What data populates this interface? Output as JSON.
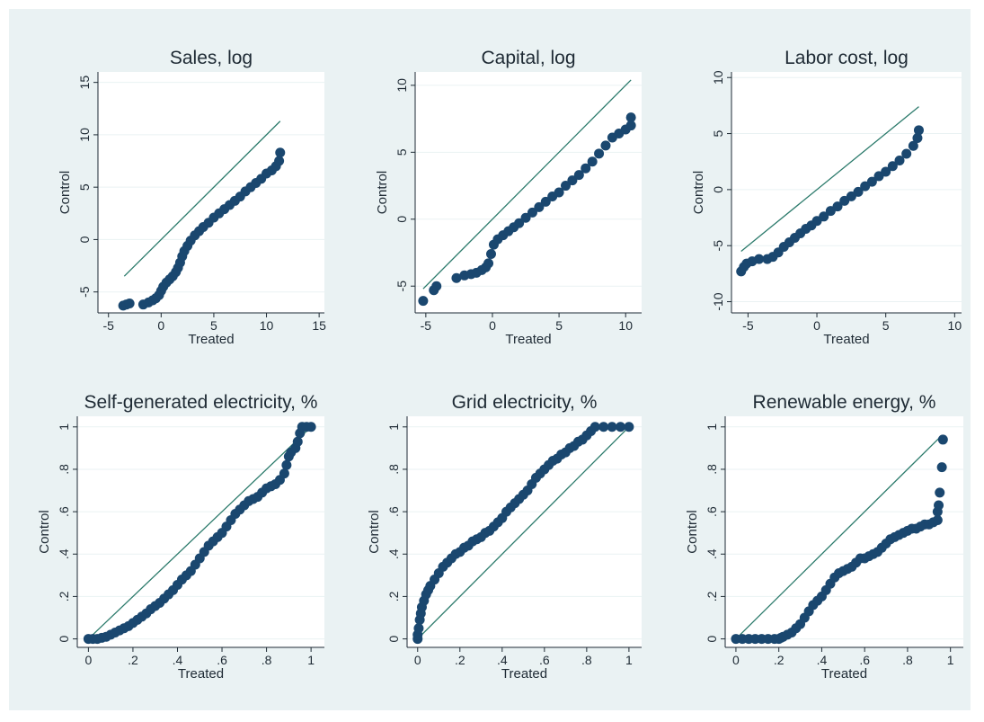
{
  "chart_data": [
    {
      "type": "scatter",
      "title": "Sales, log",
      "xlabel": "Treated",
      "ylabel": "Control",
      "xlim": [
        -6,
        15.5
      ],
      "ylim": [
        -7,
        16
      ],
      "xticks": [
        -5,
        0,
        5,
        10,
        15
      ],
      "xtick_labels": [
        "-5",
        "0",
        "5",
        "10",
        "15"
      ],
      "yticks": [
        -5,
        0,
        5,
        10,
        15
      ],
      "ytick_labels": [
        "-5",
        "0",
        "5",
        "10",
        "15"
      ],
      "grid": true,
      "reference_line": [
        [
          -3.5,
          -3.5
        ],
        [
          11.3,
          11.3
        ]
      ],
      "points": [
        [
          -3.6,
          -6.3
        ],
        [
          -3.3,
          -6.2
        ],
        [
          -3.0,
          -6.1
        ],
        [
          -1.7,
          -6.2
        ],
        [
          -1.2,
          -6.0
        ],
        [
          -0.8,
          -5.8
        ],
        [
          -0.5,
          -5.6
        ],
        [
          -0.2,
          -5.3
        ],
        [
          0.0,
          -4.9
        ],
        [
          0.2,
          -4.5
        ],
        [
          0.5,
          -4.1
        ],
        [
          0.8,
          -3.8
        ],
        [
          1.1,
          -3.5
        ],
        [
          1.4,
          -3.1
        ],
        [
          1.6,
          -2.7
        ],
        [
          1.8,
          -2.2
        ],
        [
          2.0,
          -1.6
        ],
        [
          2.2,
          -1.1
        ],
        [
          2.5,
          -0.6
        ],
        [
          2.8,
          -0.1
        ],
        [
          3.2,
          0.4
        ],
        [
          3.6,
          0.8
        ],
        [
          4.0,
          1.2
        ],
        [
          4.5,
          1.6
        ],
        [
          5.0,
          2.1
        ],
        [
          5.5,
          2.5
        ],
        [
          6.0,
          2.9
        ],
        [
          6.5,
          3.3
        ],
        [
          7.0,
          3.7
        ],
        [
          7.5,
          4.1
        ],
        [
          8.0,
          4.6
        ],
        [
          8.5,
          5.0
        ],
        [
          9.0,
          5.4
        ],
        [
          9.5,
          5.8
        ],
        [
          10.0,
          6.3
        ],
        [
          10.5,
          6.6
        ],
        [
          10.9,
          7.0
        ],
        [
          11.2,
          7.5
        ],
        [
          11.3,
          8.3
        ]
      ]
    },
    {
      "type": "scatter",
      "title": "Capital, log",
      "xlabel": "Treated",
      "ylabel": "Control",
      "xlim": [
        -5.8,
        11.2
      ],
      "ylim": [
        -7,
        11
      ],
      "xticks": [
        -5,
        0,
        5,
        10
      ],
      "xtick_labels": [
        "-5",
        "0",
        "5",
        "10"
      ],
      "yticks": [
        -5,
        0,
        5,
        10
      ],
      "ytick_labels": [
        "-5",
        "0",
        "5",
        "10"
      ],
      "grid": true,
      "reference_line": [
        [
          -5.2,
          -5.2
        ],
        [
          10.4,
          10.4
        ]
      ],
      "points": [
        [
          -5.2,
          -6.1
        ],
        [
          -4.4,
          -5.3
        ],
        [
          -4.2,
          -5.0
        ],
        [
          -2.7,
          -4.4
        ],
        [
          -2.1,
          -4.2
        ],
        [
          -1.6,
          -4.1
        ],
        [
          -1.2,
          -4.0
        ],
        [
          -0.8,
          -3.8
        ],
        [
          -0.5,
          -3.6
        ],
        [
          -0.3,
          -3.3
        ],
        [
          -0.1,
          -2.6
        ],
        [
          0.1,
          -1.9
        ],
        [
          0.4,
          -1.5
        ],
        [
          0.8,
          -1.2
        ],
        [
          1.2,
          -0.9
        ],
        [
          1.6,
          -0.6
        ],
        [
          2.0,
          -0.3
        ],
        [
          2.5,
          0.1
        ],
        [
          3.0,
          0.5
        ],
        [
          3.5,
          0.9
        ],
        [
          4.0,
          1.3
        ],
        [
          4.5,
          1.7
        ],
        [
          5.0,
          2.0
        ],
        [
          5.5,
          2.5
        ],
        [
          6.0,
          2.9
        ],
        [
          6.5,
          3.3
        ],
        [
          7.0,
          3.8
        ],
        [
          7.5,
          4.3
        ],
        [
          8.0,
          4.9
        ],
        [
          8.5,
          5.5
        ],
        [
          9.0,
          6.1
        ],
        [
          9.5,
          6.4
        ],
        [
          10.0,
          6.7
        ],
        [
          10.4,
          7.0
        ],
        [
          10.4,
          7.6
        ]
      ]
    },
    {
      "type": "scatter",
      "title": "Labor cost, log",
      "xlabel": "Treated",
      "ylabel": "Control",
      "xlim": [
        -6.2,
        10.5
      ],
      "ylim": [
        -11,
        10.5
      ],
      "xticks": [
        -5,
        0,
        5,
        10
      ],
      "xtick_labels": [
        "-5",
        "0",
        "5",
        "10"
      ],
      "yticks": [
        -10,
        -5,
        0,
        5,
        10
      ],
      "ytick_labels": [
        "-10",
        "-5",
        "0",
        "5",
        "10"
      ],
      "grid": true,
      "reference_line": [
        [
          -5.5,
          -5.5
        ],
        [
          7.4,
          7.4
        ]
      ],
      "points": [
        [
          -5.5,
          -7.3
        ],
        [
          -5.3,
          -6.9
        ],
        [
          -5.1,
          -6.6
        ],
        [
          -4.7,
          -6.4
        ],
        [
          -4.2,
          -6.2
        ],
        [
          -3.6,
          -6.2
        ],
        [
          -3.2,
          -6.0
        ],
        [
          -2.8,
          -5.6
        ],
        [
          -2.4,
          -5.1
        ],
        [
          -2.0,
          -4.7
        ],
        [
          -1.6,
          -4.3
        ],
        [
          -1.2,
          -3.9
        ],
        [
          -0.8,
          -3.5
        ],
        [
          -0.4,
          -3.2
        ],
        [
          0.0,
          -2.8
        ],
        [
          0.5,
          -2.4
        ],
        [
          1.0,
          -1.9
        ],
        [
          1.5,
          -1.5
        ],
        [
          2.0,
          -1.0
        ],
        [
          2.5,
          -0.6
        ],
        [
          3.0,
          -0.2
        ],
        [
          3.5,
          0.3
        ],
        [
          4.0,
          0.7
        ],
        [
          4.5,
          1.2
        ],
        [
          5.0,
          1.6
        ],
        [
          5.5,
          2.1
        ],
        [
          6.0,
          2.6
        ],
        [
          6.5,
          3.2
        ],
        [
          7.0,
          3.9
        ],
        [
          7.3,
          4.6
        ],
        [
          7.4,
          5.3
        ]
      ]
    },
    {
      "type": "scatter",
      "title": "Self-generated electricity, %",
      "xlabel": "Treated",
      "ylabel": "Control",
      "xlim": [
        -0.05,
        1.06
      ],
      "ylim": [
        -0.04,
        1.05
      ],
      "xticks": [
        0,
        0.2,
        0.4,
        0.6,
        0.8,
        1
      ],
      "xtick_labels": [
        "0",
        ".2",
        ".4",
        ".6",
        ".8",
        "1"
      ],
      "yticks": [
        0,
        0.2,
        0.4,
        0.6,
        0.8,
        1
      ],
      "ytick_labels": [
        "0",
        ".2",
        ".4",
        ".6",
        ".8",
        "1"
      ],
      "grid": true,
      "reference_line": [
        [
          0,
          0
        ],
        [
          0.99,
          0.99
        ]
      ],
      "points": [
        [
          0.0,
          0.0
        ],
        [
          0.02,
          0.0
        ],
        [
          0.04,
          0.0
        ],
        [
          0.06,
          0.005
        ],
        [
          0.08,
          0.01
        ],
        [
          0.1,
          0.02
        ],
        [
          0.12,
          0.03
        ],
        [
          0.14,
          0.04
        ],
        [
          0.16,
          0.05
        ],
        [
          0.18,
          0.06
        ],
        [
          0.2,
          0.075
        ],
        [
          0.22,
          0.09
        ],
        [
          0.24,
          0.105
        ],
        [
          0.26,
          0.12
        ],
        [
          0.28,
          0.14
        ],
        [
          0.3,
          0.155
        ],
        [
          0.32,
          0.17
        ],
        [
          0.34,
          0.19
        ],
        [
          0.36,
          0.21
        ],
        [
          0.38,
          0.23
        ],
        [
          0.4,
          0.255
        ],
        [
          0.42,
          0.28
        ],
        [
          0.44,
          0.3
        ],
        [
          0.46,
          0.32
        ],
        [
          0.48,
          0.35
        ],
        [
          0.5,
          0.38
        ],
        [
          0.52,
          0.41
        ],
        [
          0.54,
          0.44
        ],
        [
          0.56,
          0.46
        ],
        [
          0.58,
          0.48
        ],
        [
          0.6,
          0.5
        ],
        [
          0.62,
          0.53
        ],
        [
          0.64,
          0.56
        ],
        [
          0.66,
          0.59
        ],
        [
          0.68,
          0.61
        ],
        [
          0.7,
          0.63
        ],
        [
          0.72,
          0.65
        ],
        [
          0.74,
          0.66
        ],
        [
          0.76,
          0.67
        ],
        [
          0.78,
          0.69
        ],
        [
          0.8,
          0.71
        ],
        [
          0.82,
          0.72
        ],
        [
          0.84,
          0.73
        ],
        [
          0.86,
          0.75
        ],
        [
          0.88,
          0.78
        ],
        [
          0.89,
          0.82
        ],
        [
          0.9,
          0.86
        ],
        [
          0.91,
          0.88
        ],
        [
          0.93,
          0.9
        ],
        [
          0.94,
          0.93
        ],
        [
          0.95,
          0.97
        ],
        [
          0.96,
          1.0
        ],
        [
          0.98,
          1.0
        ],
        [
          1.0,
          1.0
        ]
      ]
    },
    {
      "type": "scatter",
      "title": "Grid electricity, %",
      "xlabel": "Treated",
      "ylabel": "Control",
      "xlim": [
        -0.05,
        1.06
      ],
      "ylim": [
        -0.04,
        1.05
      ],
      "xticks": [
        0,
        0.2,
        0.4,
        0.6,
        0.8,
        1
      ],
      "xtick_labels": [
        "0",
        ".2",
        ".4",
        ".6",
        ".8",
        "1"
      ],
      "yticks": [
        0,
        0.2,
        0.4,
        0.6,
        0.8,
        1
      ],
      "ytick_labels": [
        "0",
        ".2",
        ".4",
        ".6",
        ".8",
        "1"
      ],
      "grid": true,
      "reference_line": [
        [
          0,
          0
        ],
        [
          1,
          1
        ]
      ],
      "points": [
        [
          0.0,
          0.0
        ],
        [
          0.0,
          0.02
        ],
        [
          0.005,
          0.05
        ],
        [
          0.01,
          0.09
        ],
        [
          0.015,
          0.12
        ],
        [
          0.02,
          0.15
        ],
        [
          0.03,
          0.18
        ],
        [
          0.04,
          0.21
        ],
        [
          0.05,
          0.23
        ],
        [
          0.06,
          0.25
        ],
        [
          0.08,
          0.28
        ],
        [
          0.1,
          0.31
        ],
        [
          0.12,
          0.34
        ],
        [
          0.14,
          0.36
        ],
        [
          0.16,
          0.38
        ],
        [
          0.18,
          0.4
        ],
        [
          0.2,
          0.41
        ],
        [
          0.22,
          0.43
        ],
        [
          0.24,
          0.44
        ],
        [
          0.26,
          0.46
        ],
        [
          0.28,
          0.47
        ],
        [
          0.3,
          0.48
        ],
        [
          0.32,
          0.5
        ],
        [
          0.34,
          0.51
        ],
        [
          0.36,
          0.53
        ],
        [
          0.38,
          0.55
        ],
        [
          0.4,
          0.57
        ],
        [
          0.42,
          0.6
        ],
        [
          0.44,
          0.62
        ],
        [
          0.46,
          0.64
        ],
        [
          0.48,
          0.66
        ],
        [
          0.5,
          0.68
        ],
        [
          0.52,
          0.7
        ],
        [
          0.54,
          0.73
        ],
        [
          0.56,
          0.76
        ],
        [
          0.58,
          0.78
        ],
        [
          0.6,
          0.8
        ],
        [
          0.62,
          0.82
        ],
        [
          0.64,
          0.84
        ],
        [
          0.66,
          0.85
        ],
        [
          0.68,
          0.87
        ],
        [
          0.7,
          0.88
        ],
        [
          0.72,
          0.9
        ],
        [
          0.74,
          0.91
        ],
        [
          0.76,
          0.93
        ],
        [
          0.78,
          0.94
        ],
        [
          0.8,
          0.96
        ],
        [
          0.82,
          0.98
        ],
        [
          0.84,
          1.0
        ],
        [
          0.88,
          1.0
        ],
        [
          0.92,
          1.0
        ],
        [
          0.96,
          1.0
        ],
        [
          1.0,
          1.0
        ]
      ]
    },
    {
      "type": "scatter",
      "title": "Renewable energy, %",
      "xlabel": "Treated",
      "ylabel": "Control",
      "xlim": [
        -0.05,
        1.06
      ],
      "ylim": [
        -0.04,
        1.05
      ],
      "xticks": [
        0,
        0.2,
        0.4,
        0.6,
        0.8,
        1
      ],
      "xtick_labels": [
        "0",
        ".2",
        ".4",
        ".6",
        ".8",
        "1"
      ],
      "yticks": [
        0,
        0.2,
        0.4,
        0.6,
        0.8,
        1
      ],
      "ytick_labels": [
        "0",
        ".2",
        ".4",
        ".6",
        ".8",
        "1"
      ],
      "grid": true,
      "reference_line": [
        [
          0,
          0
        ],
        [
          0.96,
          0.96
        ]
      ],
      "points": [
        [
          0.0,
          0.0
        ],
        [
          0.03,
          0.0
        ],
        [
          0.06,
          0.0
        ],
        [
          0.09,
          0.0
        ],
        [
          0.12,
          0.0
        ],
        [
          0.15,
          0.0
        ],
        [
          0.18,
          0.0
        ],
        [
          0.2,
          0.0
        ],
        [
          0.21,
          0.005
        ],
        [
          0.22,
          0.01
        ],
        [
          0.24,
          0.02
        ],
        [
          0.26,
          0.03
        ],
        [
          0.28,
          0.05
        ],
        [
          0.3,
          0.07
        ],
        [
          0.32,
          0.1
        ],
        [
          0.34,
          0.13
        ],
        [
          0.36,
          0.16
        ],
        [
          0.38,
          0.18
        ],
        [
          0.4,
          0.2
        ],
        [
          0.42,
          0.23
        ],
        [
          0.44,
          0.26
        ],
        [
          0.46,
          0.29
        ],
        [
          0.48,
          0.31
        ],
        [
          0.5,
          0.32
        ],
        [
          0.52,
          0.33
        ],
        [
          0.54,
          0.34
        ],
        [
          0.56,
          0.36
        ],
        [
          0.58,
          0.38
        ],
        [
          0.6,
          0.38
        ],
        [
          0.62,
          0.39
        ],
        [
          0.64,
          0.4
        ],
        [
          0.66,
          0.41
        ],
        [
          0.68,
          0.43
        ],
        [
          0.7,
          0.45
        ],
        [
          0.72,
          0.47
        ],
        [
          0.74,
          0.48
        ],
        [
          0.76,
          0.49
        ],
        [
          0.78,
          0.5
        ],
        [
          0.8,
          0.51
        ],
        [
          0.82,
          0.52
        ],
        [
          0.84,
          0.52
        ],
        [
          0.86,
          0.53
        ],
        [
          0.88,
          0.54
        ],
        [
          0.9,
          0.54
        ],
        [
          0.92,
          0.55
        ],
        [
          0.94,
          0.56
        ],
        [
          0.94,
          0.6
        ],
        [
          0.945,
          0.63
        ],
        [
          0.95,
          0.69
        ],
        [
          0.96,
          0.81
        ],
        [
          0.965,
          0.94
        ]
      ]
    }
  ]
}
